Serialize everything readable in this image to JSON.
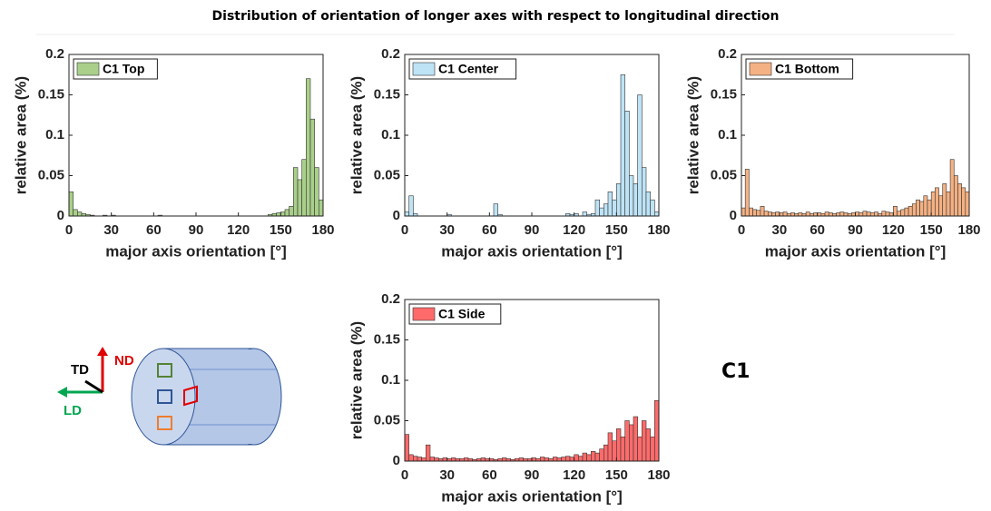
{
  "title": "Distribution of orientation of longer axes with respect to longitudinal direction",
  "panel_label": "C1",
  "diagram": {
    "labels": [
      "TD",
      "ND",
      "LD"
    ]
  },
  "chart_data": [
    {
      "type": "histogram",
      "xlabel": "major axis orientation [°]",
      "ylabel": "relative area (%)",
      "bins": [
        0,
        3,
        6,
        9,
        12,
        15,
        18,
        21,
        24,
        27,
        30,
        33,
        36,
        39,
        42,
        45,
        48,
        51,
        54,
        57,
        60,
        63,
        66,
        69,
        72,
        75,
        78,
        81,
        84,
        87,
        90,
        93,
        96,
        99,
        102,
        105,
        108,
        111,
        114,
        117,
        120,
        123,
        126,
        129,
        132,
        135,
        138,
        141,
        144,
        147,
        150,
        153,
        156,
        159,
        162,
        165,
        168,
        171,
        174,
        177,
        180
      ],
      "series": [
        {
          "name": "C1 Top",
          "color": "#a9cf8a",
          "values": [
            0.03,
            0.008,
            0.005,
            0.003,
            0.002,
            0.001,
            0,
            0,
            0.001,
            0,
            0.001,
            0,
            0,
            0,
            0,
            0,
            0,
            0,
            0,
            0,
            0,
            0.001,
            0,
            0,
            0,
            0,
            0,
            0,
            0,
            0,
            0,
            0,
            0,
            0,
            0,
            0,
            0,
            0,
            0,
            0,
            0,
            0,
            0,
            0,
            0,
            0,
            0,
            0.002,
            0.003,
            0.004,
            0.005,
            0.008,
            0.012,
            0.06,
            0.045,
            0.07,
            0.17,
            0.12,
            0.06,
            0.02
          ]
        }
      ],
      "xlim": [
        0,
        180
      ],
      "xticks": [
        0,
        30,
        60,
        90,
        120,
        150,
        180
      ],
      "ylim": [
        0,
        0.2
      ],
      "yticks": [
        0,
        0.05,
        0.1,
        0.15,
        0.2
      ],
      "legend": "upper left"
    },
    {
      "type": "histogram",
      "xlabel": "major axis orientation [°]",
      "ylabel": "relative area (%)",
      "bins": [
        0,
        3,
        6,
        9,
        12,
        15,
        18,
        21,
        24,
        27,
        30,
        33,
        36,
        39,
        42,
        45,
        48,
        51,
        54,
        57,
        60,
        63,
        66,
        69,
        72,
        75,
        78,
        81,
        84,
        87,
        90,
        93,
        96,
        99,
        102,
        105,
        108,
        111,
        114,
        117,
        120,
        123,
        126,
        129,
        132,
        135,
        138,
        141,
        144,
        147,
        150,
        153,
        156,
        159,
        162,
        165,
        168,
        171,
        174,
        177,
        180
      ],
      "series": [
        {
          "name": "C1 Center",
          "color": "#bde3f5",
          "values": [
            0.005,
            0.025,
            0.003,
            0,
            0,
            0,
            0,
            0,
            0,
            0,
            0.002,
            0,
            0,
            0,
            0,
            0,
            0,
            0,
            0,
            0,
            0,
            0.015,
            0.002,
            0,
            0,
            0,
            0,
            0,
            0,
            0,
            0,
            0,
            0,
            0,
            0,
            0,
            0,
            0,
            0.003,
            0.002,
            0.003,
            0,
            0.005,
            0.002,
            0.003,
            0.02,
            0.01,
            0.015,
            0.03,
            0.02,
            0.04,
            0.175,
            0.13,
            0.05,
            0.04,
            0.15,
            0.06,
            0.03,
            0.02,
            0.005
          ]
        }
      ],
      "xlim": [
        0,
        180
      ],
      "xticks": [
        0,
        30,
        60,
        90,
        120,
        150,
        180
      ],
      "ylim": [
        0,
        0.2
      ],
      "yticks": [
        0,
        0.05,
        0.1,
        0.15,
        0.2
      ],
      "legend": "upper left"
    },
    {
      "type": "histogram",
      "xlabel": "major axis orientation [°]",
      "ylabel": "relative area (%)",
      "bins": [
        0,
        3,
        6,
        9,
        12,
        15,
        18,
        21,
        24,
        27,
        30,
        33,
        36,
        39,
        42,
        45,
        48,
        51,
        54,
        57,
        60,
        63,
        66,
        69,
        72,
        75,
        78,
        81,
        84,
        87,
        90,
        93,
        96,
        99,
        102,
        105,
        108,
        111,
        114,
        117,
        120,
        123,
        126,
        129,
        132,
        135,
        138,
        141,
        144,
        147,
        150,
        153,
        156,
        159,
        162,
        165,
        168,
        171,
        174,
        177,
        180
      ],
      "series": [
        {
          "name": "C1 Bottom",
          "color": "#f4b183",
          "values": [
            0.01,
            0.058,
            0.01,
            0.008,
            0.007,
            0.012,
            0.006,
            0.005,
            0.004,
            0.005,
            0.004,
            0.005,
            0.003,
            0.004,
            0.003,
            0.004,
            0.003,
            0.005,
            0.003,
            0.004,
            0.004,
            0.003,
            0.005,
            0.004,
            0.003,
            0.004,
            0.005,
            0.004,
            0.003,
            0.004,
            0.005,
            0.004,
            0.006,
            0.005,
            0.004,
            0.005,
            0.003,
            0.006,
            0.005,
            0.004,
            0.012,
            0.006,
            0.008,
            0.01,
            0.012,
            0.015,
            0.02,
            0.018,
            0.025,
            0.02,
            0.03,
            0.035,
            0.025,
            0.04,
            0.03,
            0.07,
            0.05,
            0.04,
            0.035,
            0.03
          ]
        }
      ],
      "xlim": [
        0,
        180
      ],
      "xticks": [
        0,
        30,
        60,
        90,
        120,
        150,
        180
      ],
      "ylim": [
        0,
        0.2
      ],
      "yticks": [
        0,
        0.05,
        0.1,
        0.15,
        0.2
      ],
      "legend": "upper left"
    },
    {
      "type": "histogram",
      "xlabel": "major axis orientation [°]",
      "ylabel": "relative area (%)",
      "bins": [
        0,
        3,
        6,
        9,
        12,
        15,
        18,
        21,
        24,
        27,
        30,
        33,
        36,
        39,
        42,
        45,
        48,
        51,
        54,
        57,
        60,
        63,
        66,
        69,
        72,
        75,
        78,
        81,
        84,
        87,
        90,
        93,
        96,
        99,
        102,
        105,
        108,
        111,
        114,
        117,
        120,
        123,
        126,
        129,
        132,
        135,
        138,
        141,
        144,
        147,
        150,
        153,
        156,
        159,
        162,
        165,
        168,
        171,
        174,
        177,
        180
      ],
      "series": [
        {
          "name": "C1 Side",
          "color": "#ff6b6b",
          "values": [
            0.033,
            0.008,
            0.006,
            0.005,
            0.004,
            0.02,
            0.005,
            0.004,
            0.003,
            0.004,
            0.003,
            0.004,
            0.003,
            0.003,
            0.004,
            0.003,
            0.002,
            0.003,
            0.004,
            0.003,
            0.003,
            0.002,
            0.003,
            0.004,
            0.003,
            0.002,
            0.003,
            0.004,
            0.003,
            0.003,
            0.004,
            0.003,
            0.005,
            0.004,
            0.003,
            0.005,
            0.004,
            0.005,
            0.006,
            0.005,
            0.008,
            0.006,
            0.01,
            0.008,
            0.012,
            0.01,
            0.015,
            0.02,
            0.035,
            0.025,
            0.04,
            0.03,
            0.05,
            0.045,
            0.055,
            0.03,
            0.05,
            0.04,
            0.03,
            0.075
          ]
        }
      ],
      "xlim": [
        0,
        180
      ],
      "xticks": [
        0,
        30,
        60,
        90,
        120,
        150,
        180
      ],
      "ylim": [
        0,
        0.2
      ],
      "yticks": [
        0,
        0.05,
        0.1,
        0.15,
        0.2
      ],
      "legend": "upper left"
    }
  ]
}
